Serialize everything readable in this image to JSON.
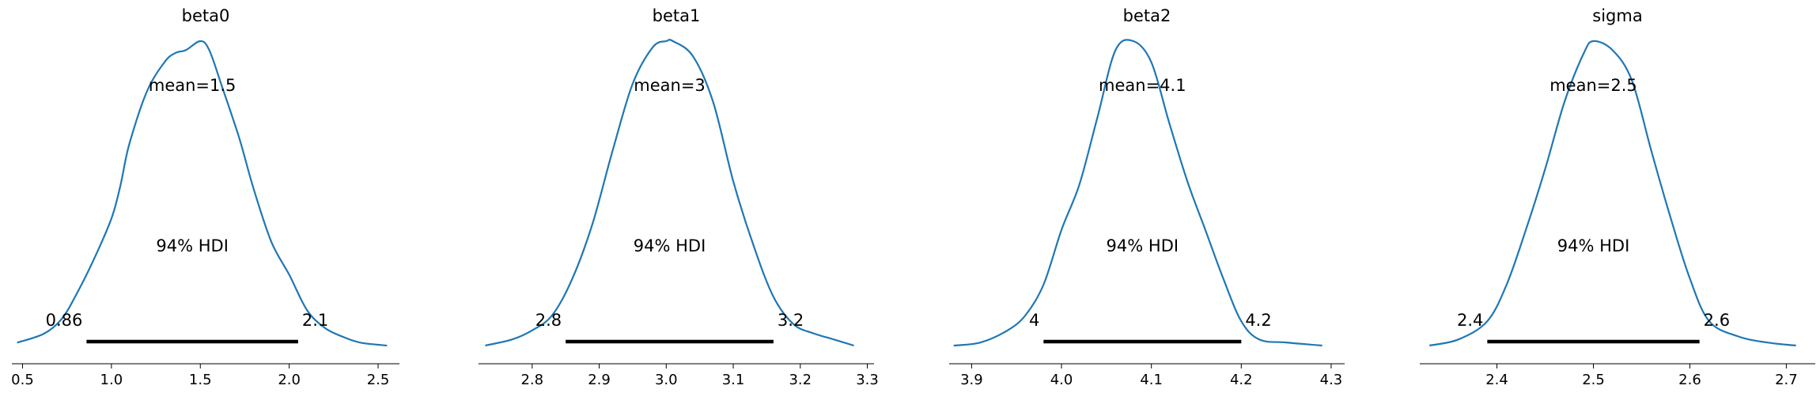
{
  "chart_data": [
    {
      "type": "area",
      "title": "beta0",
      "xlim": [
        0.44,
        2.62
      ],
      "ticks": [
        0.5,
        1.0,
        1.5,
        2.0,
        2.5
      ],
      "tick_labels": [
        "0.5",
        "1.0",
        "1.5",
        "2.0",
        "2.5"
      ],
      "mean_label": "mean=1.5",
      "hdi_label": "94% HDI",
      "hdi": [
        0.86,
        2.05
      ],
      "hdi_lo_label": "0.86",
      "hdi_hi_label": "2.1",
      "x": [
        0.47,
        0.62,
        0.72,
        0.8,
        0.9,
        1.0,
        1.05,
        1.1,
        1.2,
        1.3,
        1.36,
        1.42,
        1.5,
        1.55,
        1.62,
        1.72,
        1.8,
        1.9,
        2.0,
        2.1,
        2.2,
        2.3,
        2.4,
        2.55
      ],
      "y": [
        0.01,
        0.04,
        0.09,
        0.17,
        0.29,
        0.43,
        0.54,
        0.68,
        0.86,
        0.96,
        0.99,
        1.0,
        1.03,
        1.0,
        0.88,
        0.7,
        0.53,
        0.35,
        0.24,
        0.12,
        0.06,
        0.03,
        0.01,
        0.0
      ]
    },
    {
      "type": "area",
      "title": "beta1",
      "xlim": [
        2.72,
        3.31
      ],
      "ticks": [
        2.8,
        2.9,
        3.0,
        3.1,
        3.2,
        3.3
      ],
      "tick_labels": [
        "2.8",
        "2.9",
        "3.0",
        "3.1",
        "3.2",
        "3.3"
      ],
      "mean_label": "mean=3",
      "hdi_label": "94% HDI",
      "hdi": [
        2.85,
        3.16
      ],
      "hdi_lo_label": "2.8",
      "hdi_hi_label": "3.2",
      "x": [
        2.73,
        2.77,
        2.8,
        2.83,
        2.86,
        2.89,
        2.92,
        2.95,
        2.98,
        3.0,
        3.01,
        3.04,
        3.07,
        3.1,
        3.13,
        3.16,
        3.19,
        3.22,
        3.25,
        3.28
      ],
      "y": [
        0.0,
        0.02,
        0.05,
        0.1,
        0.22,
        0.4,
        0.64,
        0.86,
        0.98,
        1.0,
        1.0,
        0.95,
        0.8,
        0.54,
        0.33,
        0.16,
        0.07,
        0.04,
        0.02,
        0.0
      ]
    },
    {
      "type": "area",
      "title": "beta2",
      "xlim": [
        3.875,
        4.315
      ],
      "ticks": [
        3.9,
        4.0,
        4.1,
        4.2,
        4.3
      ],
      "tick_labels": [
        "3.9",
        "4.0",
        "4.1",
        "4.2",
        "4.3"
      ],
      "mean_label": "mean=4.1",
      "hdi_label": "94% HDI",
      "hdi": [
        3.98,
        4.2
      ],
      "hdi_lo_label": "4",
      "hdi_hi_label": "4.2",
      "x": [
        3.88,
        3.91,
        3.94,
        3.96,
        3.98,
        4.0,
        4.02,
        4.04,
        4.06,
        4.08,
        4.1,
        4.12,
        4.14,
        4.16,
        4.18,
        4.2,
        4.22,
        4.25,
        4.29
      ],
      "y": [
        0.0,
        0.01,
        0.05,
        0.1,
        0.2,
        0.38,
        0.53,
        0.75,
        0.97,
        1.0,
        0.93,
        0.73,
        0.54,
        0.38,
        0.22,
        0.08,
        0.02,
        0.01,
        0.0
      ]
    },
    {
      "type": "area",
      "title": "sigma",
      "xlim": [
        2.32,
        2.73
      ],
      "ticks": [
        2.4,
        2.5,
        2.6,
        2.7
      ],
      "tick_labels": [
        "2.4",
        "2.5",
        "2.6",
        "2.7"
      ],
      "mean_label": "mean=2.5",
      "hdi_label": "94% HDI",
      "hdi": [
        2.39,
        2.61
      ],
      "hdi_lo_label": "2.4",
      "hdi_hi_label": "2.6",
      "x": [
        2.33,
        2.36,
        2.39,
        2.41,
        2.43,
        2.45,
        2.47,
        2.49,
        2.5,
        2.52,
        2.54,
        2.56,
        2.58,
        2.6,
        2.62,
        2.65,
        2.68,
        2.71
      ],
      "y": [
        0.0,
        0.02,
        0.08,
        0.2,
        0.38,
        0.58,
        0.8,
        0.96,
        1.0,
        0.97,
        0.87,
        0.64,
        0.42,
        0.22,
        0.08,
        0.03,
        0.01,
        0.0
      ]
    }
  ],
  "colors": {
    "line": "#1f77b4",
    "hdi": "#000000",
    "axis": "#000000"
  }
}
